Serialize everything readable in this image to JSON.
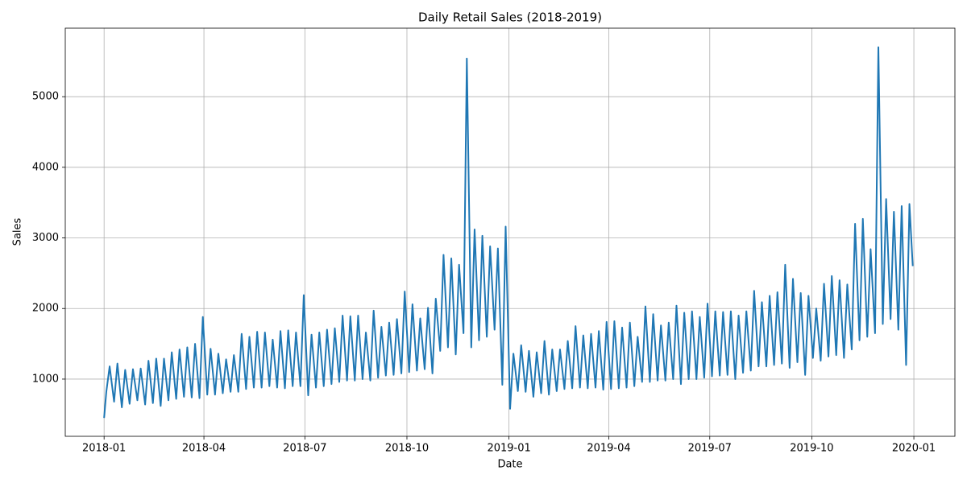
{
  "chart_data": {
    "type": "line",
    "title": "Daily Retail Sales (2018-2019)",
    "x_label": "Date",
    "y_label": "Sales",
    "color": "#1f77b4",
    "grid": true,
    "xlim": [
      -35,
      767
    ],
    "ylim": [
      190,
      5970
    ],
    "xticks": [
      {
        "value": 0,
        "label": "2018-01"
      },
      {
        "value": 90,
        "label": "2018-04"
      },
      {
        "value": 181,
        "label": "2018-07"
      },
      {
        "value": 273,
        "label": "2018-10"
      },
      {
        "value": 365,
        "label": "2019-01"
      },
      {
        "value": 455,
        "label": "2019-04"
      },
      {
        "value": 546,
        "label": "2019-07"
      },
      {
        "value": 638,
        "label": "2019-10"
      },
      {
        "value": 730,
        "label": "2020-01"
      }
    ],
    "yticks": [
      1000,
      2000,
      3000,
      4000,
      5000
    ],
    "x": [
      0,
      2,
      5,
      9,
      12,
      16,
      19,
      23,
      26,
      30,
      33,
      37,
      40,
      44,
      47,
      51,
      54,
      58,
      61,
      65,
      68,
      72,
      75,
      79,
      82,
      86,
      89,
      93,
      96,
      100,
      103,
      107,
      110,
      114,
      117,
      121,
      124,
      128,
      131,
      135,
      138,
      142,
      145,
      149,
      152,
      156,
      159,
      163,
      166,
      170,
      173,
      177,
      180,
      184,
      187,
      191,
      194,
      198,
      201,
      205,
      208,
      212,
      215,
      219,
      222,
      226,
      229,
      233,
      236,
      240,
      243,
      247,
      250,
      254,
      257,
      261,
      264,
      268,
      271,
      275,
      278,
      282,
      285,
      289,
      292,
      296,
      299,
      303,
      306,
      310,
      313,
      317,
      320,
      324,
      327,
      331,
      334,
      338,
      341,
      345,
      348,
      352,
      355,
      359,
      362,
      366,
      369,
      373,
      376,
      380,
      383,
      387,
      390,
      394,
      397,
      401,
      404,
      408,
      411,
      415,
      418,
      422,
      425,
      429,
      432,
      436,
      439,
      443,
      446,
      450,
      453,
      457,
      460,
      464,
      467,
      471,
      474,
      478,
      481,
      485,
      488,
      492,
      495,
      499,
      502,
      506,
      509,
      513,
      516,
      520,
      523,
      527,
      530,
      534,
      537,
      541,
      544,
      548,
      551,
      555,
      558,
      562,
      565,
      569,
      572,
      576,
      579,
      583,
      586,
      590,
      593,
      597,
      600,
      604,
      607,
      611,
      614,
      618,
      621,
      625,
      628,
      632,
      635,
      639,
      642,
      646,
      649,
      653,
      656,
      660,
      663,
      667,
      670,
      674,
      677,
      681,
      684,
      688,
      691,
      695,
      698,
      702,
      705,
      709,
      712,
      716,
      719,
      723,
      726,
      729
    ],
    "values": [
      450,
      820,
      1180,
      680,
      1220,
      600,
      1130,
      650,
      1140,
      700,
      1150,
      640,
      1260,
      660,
      1290,
      620,
      1290,
      700,
      1380,
      720,
      1420,
      750,
      1450,
      740,
      1500,
      730,
      1880,
      780,
      1430,
      780,
      1360,
      800,
      1280,
      820,
      1340,
      820,
      1640,
      860,
      1600,
      880,
      1670,
      880,
      1660,
      900,
      1560,
      880,
      1680,
      870,
      1690,
      900,
      1660,
      900,
      2190,
      770,
      1630,
      880,
      1660,
      900,
      1700,
      930,
      1720,
      960,
      1900,
      980,
      1890,
      980,
      1900,
      1000,
      1660,
      980,
      1970,
      1020,
      1740,
      1050,
      1800,
      1060,
      1850,
      1080,
      2240,
      1100,
      2060,
      1120,
      1860,
      1140,
      2010,
      1080,
      2140,
      1400,
      2760,
      1450,
      2710,
      1350,
      2620,
      1650,
      5540,
      1450,
      3120,
      1550,
      3030,
      1600,
      2880,
      1700,
      2850,
      920,
      3160,
      580,
      1360,
      830,
      1480,
      820,
      1400,
      750,
      1380,
      800,
      1540,
      780,
      1420,
      830,
      1420,
      860,
      1540,
      870,
      1750,
      880,
      1620,
      870,
      1640,
      880,
      1680,
      850,
      1810,
      860,
      1820,
      870,
      1730,
      880,
      1800,
      900,
      1600,
      960,
      2030,
      960,
      1920,
      980,
      1760,
      980,
      1800,
      1000,
      2040,
      930,
      1940,
      1000,
      1960,
      1000,
      1880,
      1020,
      2070,
      1040,
      1960,
      1050,
      1950,
      1060,
      1960,
      1000,
      1900,
      1090,
      1960,
      1120,
      2250,
      1180,
      2090,
      1180,
      2180,
      1200,
      2230,
      1220,
      2620,
      1160,
      2420,
      1240,
      2220,
      1060,
      2180,
      1300,
      2000,
      1260,
      2350,
      1320,
      2460,
      1340,
      2400,
      1300,
      2340,
      1420,
      3200,
      1550,
      3270,
      1600,
      2840,
      1650,
      5700,
      1780,
      3550,
      1850,
      3370,
      1700,
      3450,
      1200,
      3480,
      2600
    ]
  }
}
